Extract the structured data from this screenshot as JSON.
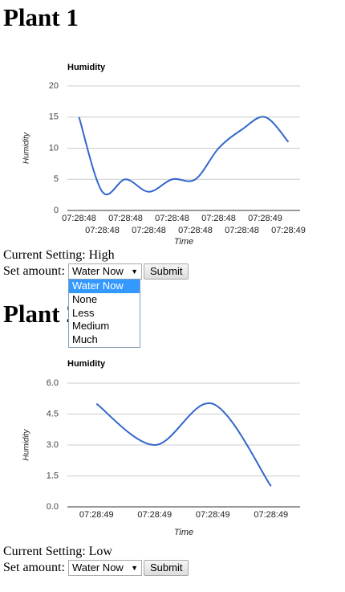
{
  "sections": [
    {
      "title": "Plant 1",
      "setting": "Current Setting: High",
      "amount_label": "Set amount:",
      "selected": "Water Now",
      "button": "Submit"
    },
    {
      "title": "Plant 2",
      "setting": "Current Setting: Low",
      "amount_label": "Set amount:",
      "selected": "Water Now",
      "button": "Submit"
    }
  ],
  "dropdown": {
    "options": [
      "Water Now",
      "None",
      "Less",
      "Medium",
      "Much"
    ]
  },
  "chart_data": [
    {
      "type": "line",
      "title": "Humidity",
      "ylabel": "Humidity",
      "xlabel": "Time",
      "categories": [
        "07:28:48",
        "07:28:48",
        "07:28:48",
        "07:28:48",
        "07:28:48",
        "07:28:48",
        "07:28:48",
        "07:28:48",
        "07:28:49",
        "07:28:49"
      ],
      "values": [
        15,
        3,
        5,
        3,
        5,
        5,
        10,
        13,
        15,
        11
      ],
      "color": "#3366cc",
      "ylim": [
        0,
        20
      ],
      "yticks": [
        0,
        5,
        10,
        15,
        20
      ],
      "grid": true
    },
    {
      "type": "line",
      "title": "Humidity",
      "ylabel": "Humidity",
      "xlabel": "Time",
      "categories": [
        "07:28:49",
        "07:28:49",
        "07:28:49",
        "07:28:49"
      ],
      "values": [
        5,
        3,
        5,
        1
      ],
      "color": "#3366cc",
      "ylim": [
        0,
        6
      ],
      "yticks": [
        {
          "value": 0,
          "label": "0.0"
        },
        {
          "value": 1.5,
          "label": "1.5"
        },
        {
          "value": 3,
          "label": "3.0"
        },
        {
          "value": 4.5,
          "label": "4.5"
        },
        {
          "value": 6,
          "label": "6.0"
        }
      ],
      "grid": true
    }
  ]
}
